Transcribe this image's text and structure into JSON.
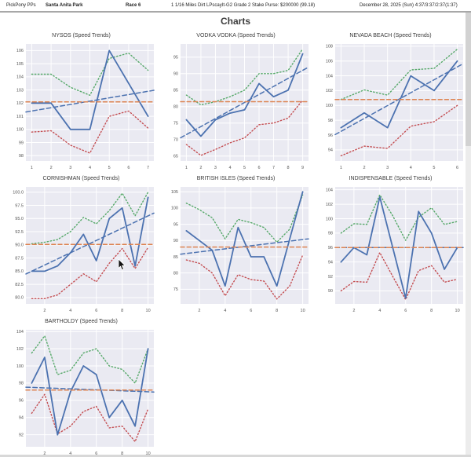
{
  "header": {
    "app": "PickPony PPs",
    "track": "Santa Anita Park",
    "race": "Race 6",
    "race_details": "1 1/16 Miles Dirt LPscayIt-G2 Grade 2 Stake Purse: $200000 (99.18)",
    "date_line": "December 28, 2025 (Sun) 4:37/3:37/2:37(1:37)"
  },
  "page_title": "Charts",
  "colors": {
    "blue": "#4C72B0",
    "orange": "#DD8452",
    "green": "#55A868",
    "red": "#C44E52",
    "plot_bg": "#EAEAF2",
    "grid": "#FFFFFF"
  },
  "chart_data": [
    {
      "type": "line",
      "name": "nysos",
      "title": "NYSOS (Speed Trends)",
      "x": [
        1,
        2,
        3,
        4,
        5,
        6,
        7
      ],
      "x_ticks": [
        1,
        2,
        3,
        4,
        5,
        6,
        7
      ],
      "xlim": [
        0.7,
        7.3
      ],
      "y_ticks": [
        98,
        99,
        100,
        101,
        102,
        103,
        104,
        105,
        106
      ],
      "y_tick_labels": [
        "98",
        "99",
        "100",
        "101",
        "102",
        "103",
        "104",
        "105",
        "106"
      ],
      "ylim": [
        97.6,
        106.5
      ],
      "values": [
        102,
        102,
        100,
        100,
        106,
        103.5,
        101
      ],
      "upper": [
        104.2,
        104.2,
        103.2,
        102.6,
        105.4,
        105.8,
        104.5
      ],
      "lower": [
        99.8,
        99.9,
        98.8,
        98.2,
        101,
        101.4,
        100.1
      ],
      "mean": 102.1,
      "trend": [
        101.4,
        102.9
      ]
    },
    {
      "type": "line",
      "name": "vodka-vodka",
      "title": "VODKA VODKA (Speed Trends)",
      "x": [
        1,
        2,
        3,
        4,
        5,
        6,
        7,
        8,
        9
      ],
      "x_ticks": [
        1,
        2,
        3,
        4,
        5,
        6,
        7,
        8,
        9
      ],
      "xlim": [
        0.6,
        9.4
      ],
      "y_ticks": [
        65,
        70,
        75,
        80,
        85,
        90,
        95
      ],
      "y_tick_labels": [
        "65",
        "70",
        "75",
        "80",
        "85",
        "90",
        "95"
      ],
      "ylim": [
        63.5,
        99.0
      ],
      "values": [
        76,
        71,
        76,
        78,
        79,
        87,
        83,
        85,
        96
      ],
      "upper": [
        83.5,
        80.5,
        81.5,
        83,
        85,
        90,
        90,
        91,
        97.5
      ],
      "lower": [
        68.5,
        65.2,
        67,
        69,
        70.5,
        74.5,
        75,
        76.5,
        82
      ],
      "mean": 81.5,
      "trend": [
        71.5,
        91
      ]
    },
    {
      "type": "line",
      "name": "nevada-beach",
      "title": "NEVADA BEACH (Speed Trends)",
      "x": [
        1,
        2,
        3,
        4,
        5,
        6
      ],
      "x_ticks": [
        1,
        2,
        3,
        4,
        5,
        6
      ],
      "xlim": [
        0.75,
        6.25
      ],
      "y_ticks": [
        94,
        96,
        98,
        100,
        102,
        104,
        106,
        108
      ],
      "y_tick_labels": [
        "94",
        "96",
        "98",
        "100",
        "102",
        "104",
        "106",
        "108"
      ],
      "ylim": [
        92.5,
        108.3
      ],
      "values": [
        97,
        99,
        97,
        104,
        102,
        106
      ],
      "upper": [
        100.8,
        102.1,
        101.4,
        104.8,
        105,
        107.6
      ],
      "lower": [
        93.2,
        94.5,
        94.2,
        97.2,
        97.8,
        100
      ],
      "mean": 100.8,
      "trend": [
        96.5,
        105.2
      ]
    },
    {
      "type": "line",
      "name": "cornishman",
      "title": "CORNISHMAN (Speed Trends)",
      "x": [
        1,
        2,
        3,
        4,
        5,
        6,
        7,
        8,
        9,
        10
      ],
      "x_ticks": [
        2,
        4,
        6,
        8,
        10
      ],
      "xlim": [
        0.55,
        10.45
      ],
      "y_ticks": [
        80,
        82.5,
        85,
        87.5,
        90,
        92.5,
        95,
        97.5,
        100
      ],
      "y_tick_labels": [
        "80.0",
        "82.5",
        "85.0",
        "87.5",
        "90.0",
        "92.5",
        "95.0",
        "97.5",
        "100.0"
      ],
      "ylim": [
        78.8,
        101.0
      ],
      "values": [
        85,
        85,
        86,
        88.5,
        92,
        87,
        95,
        97,
        86,
        99
      ],
      "upper": [
        90.2,
        90.5,
        91,
        92.5,
        95.2,
        94,
        96.5,
        99.8,
        95.5,
        100
      ],
      "lower": [
        79.8,
        79.8,
        80.5,
        82.5,
        84.5,
        83,
        86.5,
        89.3,
        85.5,
        89.5
      ],
      "mean": 90.1,
      "trend": [
        85,
        95.5
      ]
    },
    {
      "type": "line",
      "name": "british-isles",
      "title": "BRITISH ISLES (Speed Trends)",
      "x": [
        1,
        2,
        3,
        4,
        5,
        6,
        7,
        8,
        9,
        10
      ],
      "x_ticks": [
        2,
        4,
        6,
        8,
        10
      ],
      "xlim": [
        0.55,
        10.45
      ],
      "y_ticks": [
        75,
        80,
        85,
        90,
        95,
        100,
        105
      ],
      "y_tick_labels": [
        "75",
        "80",
        "85",
        "90",
        "95",
        "100",
        "105"
      ],
      "ylim": [
        70.5,
        106.5
      ],
      "values": [
        93,
        90,
        87,
        76,
        94,
        85,
        85,
        76,
        90.5,
        105
      ],
      "upper": [
        101.5,
        99.5,
        97,
        90.5,
        96.5,
        95.5,
        94,
        89.5,
        93.5,
        104
      ],
      "lower": [
        84,
        83,
        80,
        73,
        79.5,
        78,
        77.5,
        72,
        76,
        85.5
      ],
      "mean": 88,
      "trend": [
        86,
        90.3
      ]
    },
    {
      "type": "line",
      "name": "indispensable",
      "title": "INDISPENSABLE (Speed Trends)",
      "x": [
        1,
        2,
        3,
        4,
        5,
        6,
        7,
        8,
        9,
        10
      ],
      "x_ticks": [
        2,
        4,
        6,
        8,
        10
      ],
      "xlim": [
        0.55,
        10.45
      ],
      "y_ticks": [
        90,
        92,
        94,
        96,
        98,
        100,
        102,
        104
      ],
      "y_tick_labels": [
        "90",
        "92",
        "94",
        "96",
        "98",
        "100",
        "102",
        "104"
      ],
      "ylim": [
        88.2,
        104.4
      ],
      "values": [
        94,
        96,
        95,
        103,
        96,
        89,
        101,
        98,
        93,
        96
      ],
      "upper": [
        98,
        99.3,
        99.2,
        103.3,
        100.4,
        97,
        100.2,
        101.5,
        99.2,
        99.6
      ],
      "lower": [
        90,
        91.3,
        91.2,
        95.3,
        92,
        88.8,
        92.8,
        93.5,
        91.2,
        91.6
      ],
      "mean": 96,
      "trend": [
        96,
        96
      ]
    },
    {
      "type": "line",
      "name": "bartholdy",
      "title": "BARTHOLDY (Speed Trends)",
      "x": [
        1,
        2,
        3,
        4,
        5,
        6,
        7,
        8,
        9,
        10
      ],
      "x_ticks": [
        2,
        4,
        6,
        8,
        10
      ],
      "xlim": [
        0.55,
        10.45
      ],
      "y_ticks": [
        92,
        94,
        96,
        98,
        100,
        102,
        104
      ],
      "y_tick_labels": [
        "92",
        "94",
        "96",
        "98",
        "100",
        "102",
        "104"
      ],
      "ylim": [
        90.6,
        104.2
      ],
      "values": [
        98,
        101,
        92,
        97,
        100,
        99,
        94,
        96,
        93,
        102
      ],
      "upper": [
        101.5,
        103.5,
        99,
        99.5,
        101.5,
        102,
        100,
        99.6,
        98,
        102
      ],
      "lower": [
        94.5,
        96.7,
        92.1,
        93,
        94.7,
        95.3,
        92.8,
        93,
        91.2,
        95
      ],
      "mean": 97.2,
      "trend": [
        97.5,
        97
      ]
    }
  ]
}
